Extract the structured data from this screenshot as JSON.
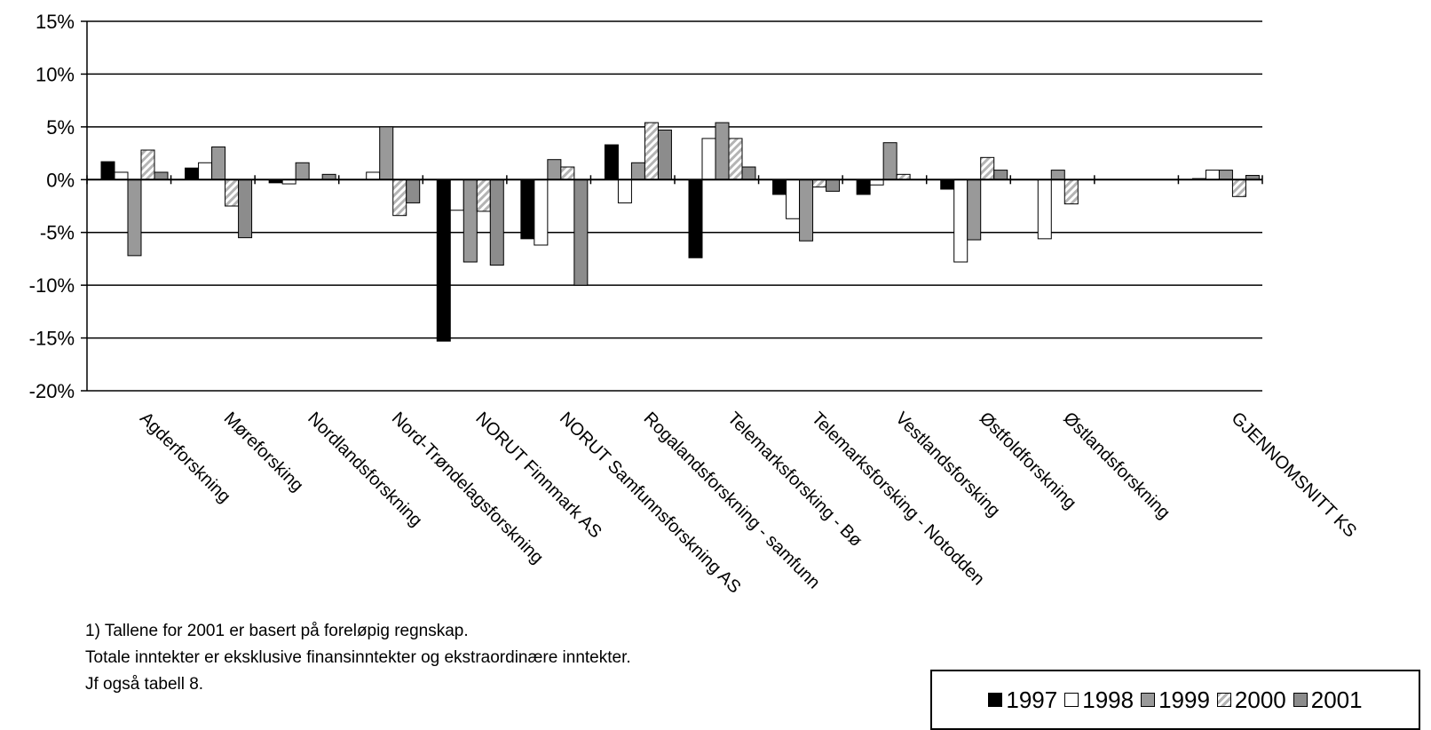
{
  "chart_data": {
    "type": "bar",
    "title": "",
    "xlabel": "",
    "ylabel": "",
    "ylim": [
      -20,
      15
    ],
    "yticks": [
      15,
      10,
      5,
      0,
      -5,
      -10,
      -15,
      -20
    ],
    "ytick_labels": [
      "15%",
      "10%",
      "5%",
      "0%",
      "-5%",
      "-10%",
      "-15%",
      "-20%"
    ],
    "grid": "horizontal",
    "legend_placement": "bottom-right",
    "categories": [
      "Agderforskning",
      "Møreforsking",
      "Nordlandsforskning",
      "Nord-Trøndelagsforskning",
      "NORUT Finnmark AS",
      "NORUT Samfunnsforskning AS",
      "Rogalandsforskning - samfunn",
      "Telemarksforsking - Bø",
      "Telemarksforsking - Notodden",
      "Vestlandsforsking",
      "Østfoldforskning",
      "Østlandsforskning",
      "",
      "GJENNOMSNITT KS"
    ],
    "series": [
      {
        "name": "1997",
        "color": "#000000",
        "pattern": "solid",
        "values": [
          1.7,
          1.1,
          -0.3,
          0,
          -15.3,
          -5.6,
          3.3,
          -7.4,
          -1.4,
          -1.4,
          -0.9,
          0,
          0,
          0.1
        ]
      },
      {
        "name": "1998",
        "color": "#ffffff",
        "pattern": "solid",
        "values": [
          0.7,
          1.6,
          -0.4,
          0.7,
          -2.9,
          -6.2,
          -2.2,
          3.9,
          -3.7,
          -0.5,
          -7.8,
          -5.6,
          0,
          0.9
        ]
      },
      {
        "name": "1999",
        "color": "#999999",
        "pattern": "solid",
        "values": [
          -7.2,
          3.1,
          1.6,
          5.0,
          -7.8,
          1.9,
          1.6,
          5.4,
          -5.8,
          3.5,
          -5.7,
          0.9,
          0,
          0.9
        ]
      },
      {
        "name": "2000",
        "color": "#b4b4b4",
        "pattern": "hatch",
        "values": [
          2.8,
          -2.5,
          0,
          -3.4,
          -3.0,
          1.2,
          5.4,
          3.9,
          -0.7,
          0.5,
          2.1,
          -2.3,
          0,
          -1.6
        ]
      },
      {
        "name": "2001",
        "color": "#8c8c8c",
        "pattern": "solid",
        "values": [
          0.7,
          -5.5,
          0.5,
          -2.2,
          -8.1,
          -10.0,
          4.7,
          1.2,
          -1.1,
          0,
          0.9,
          0,
          0,
          0.4
        ]
      }
    ]
  },
  "notes": [
    "1) Tallene for 2001 er basert på foreløpig regnskap.",
    "Totale inntekter er eksklusive finansinntekter og ekstraordinære inntekter.",
    "Jf også tabell 8."
  ]
}
